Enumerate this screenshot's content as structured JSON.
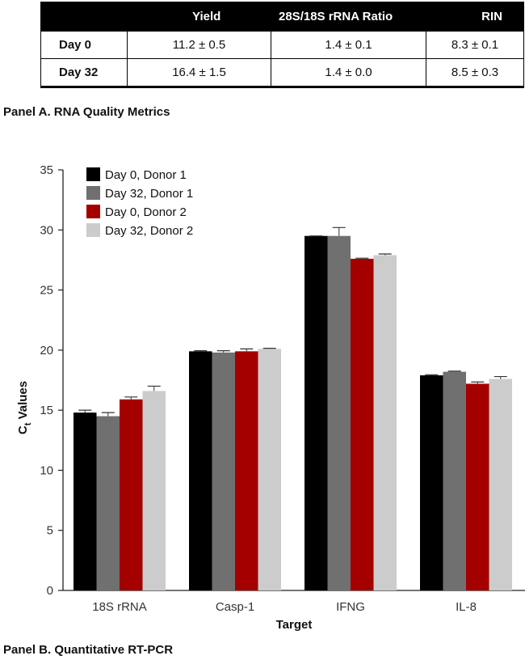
{
  "table": {
    "headers": [
      "",
      "Yield",
      "28S/18S rRNA Ratio",
      "RIN"
    ],
    "rows": [
      {
        "label": "Day 0",
        "cells": [
          "11.2 ± 0.5",
          "1.4 ± 0.1",
          "8.3 ± 0.1"
        ]
      },
      {
        "label": "Day 32",
        "cells": [
          "16.4 ± 1.5",
          "1.4 ± 0.0",
          "8.5 ± 0.3"
        ]
      }
    ]
  },
  "captions": {
    "panel_a": "Panel A. RNA Quality Metrics",
    "panel_b": "Panel B. Quantitative RT-PCR"
  },
  "chart_data": {
    "type": "bar",
    "title": "",
    "xlabel": "Target",
    "ylabel_main": "C",
    "ylabel_sub": "t",
    "ylabel_rest": " Values",
    "categories": [
      "18S rRNA",
      "Casp-1",
      "IFNG",
      "IL-8"
    ],
    "ylim": [
      0,
      35
    ],
    "yticks": [
      0,
      5,
      10,
      15,
      20,
      25,
      30,
      35
    ],
    "legend_position": "top-left",
    "grid": false,
    "series": [
      {
        "name": "Day 0, Donor 1",
        "color": "#000000",
        "values": [
          14.8,
          19.9,
          29.5,
          17.9
        ],
        "errors": [
          0.2,
          0.05,
          0.0,
          0.05
        ]
      },
      {
        "name": "Day 32, Donor 1",
        "color": "#707070",
        "values": [
          14.5,
          19.8,
          29.5,
          18.2
        ],
        "errors": [
          0.3,
          0.15,
          0.7,
          0.05
        ]
      },
      {
        "name": "Day 0, Donor 2",
        "color": "#a50000",
        "values": [
          15.9,
          19.9,
          27.6,
          17.2
        ],
        "errors": [
          0.2,
          0.2,
          0.05,
          0.15
        ]
      },
      {
        "name": "Day 32, Donor 2",
        "color": "#cccccc",
        "values": [
          16.6,
          20.1,
          27.9,
          17.6
        ],
        "errors": [
          0.4,
          0.05,
          0.1,
          0.2
        ]
      }
    ]
  }
}
